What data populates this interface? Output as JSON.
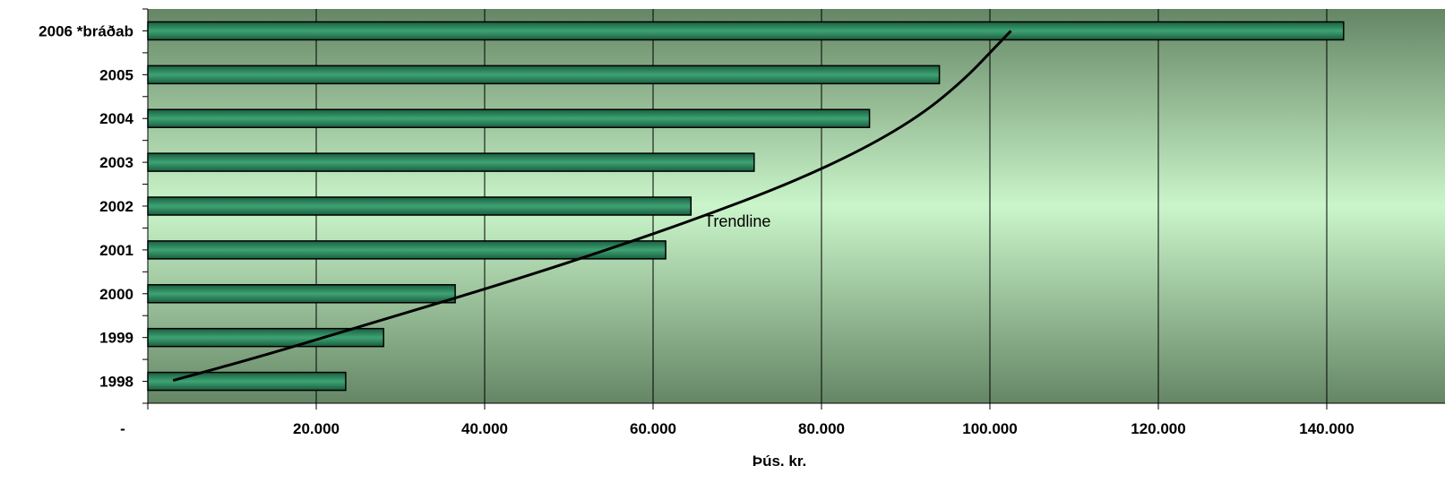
{
  "chart_data": {
    "type": "bar",
    "orientation": "horizontal",
    "categories": [
      "1998",
      "1999",
      "2000",
      "2001",
      "2002",
      "2003",
      "2004",
      "2005",
      "2006  *bráðab"
    ],
    "values": [
      23500,
      28000,
      36500,
      61500,
      64500,
      72000,
      85700,
      94000,
      142000
    ],
    "xlabel": "Þús. kr.",
    "ylabel": "",
    "xlim": [
      0,
      150000
    ],
    "xticks": [
      {
        "value": 0,
        "label": "-"
      },
      {
        "value": 20000,
        "label": "20.000"
      },
      {
        "value": 40000,
        "label": "40.000"
      },
      {
        "value": 60000,
        "label": "60.000"
      },
      {
        "value": 80000,
        "label": "80.000"
      },
      {
        "value": 100000,
        "label": "100.000"
      },
      {
        "value": 120000,
        "label": "120.000"
      },
      {
        "value": 140000,
        "label": "140.000"
      }
    ],
    "grid": "vertical",
    "bar_color": "#2e8a5f",
    "trendline": {
      "label": "Trendline",
      "label_at": {
        "x": 65000,
        "y": 3.65
      },
      "color": "#000000",
      "points": [
        {
          "x": 3000,
          "y": 0.02
        },
        {
          "x": 14000,
          "y": 0.6
        },
        {
          "x": 26000,
          "y": 1.3
        },
        {
          "x": 40000,
          "y": 2.1
        },
        {
          "x": 53000,
          "y": 2.9
        },
        {
          "x": 65000,
          "y": 3.7
        },
        {
          "x": 76000,
          "y": 4.5
        },
        {
          "x": 85000,
          "y": 5.3
        },
        {
          "x": 92000,
          "y": 6.1
        },
        {
          "x": 97000,
          "y": 6.9
        },
        {
          "x": 100500,
          "y": 7.6
        },
        {
          "x": 102500,
          "y": 8.0
        }
      ]
    },
    "background_gradient": [
      "#658665",
      "#caf5ca",
      "#658665"
    ]
  }
}
